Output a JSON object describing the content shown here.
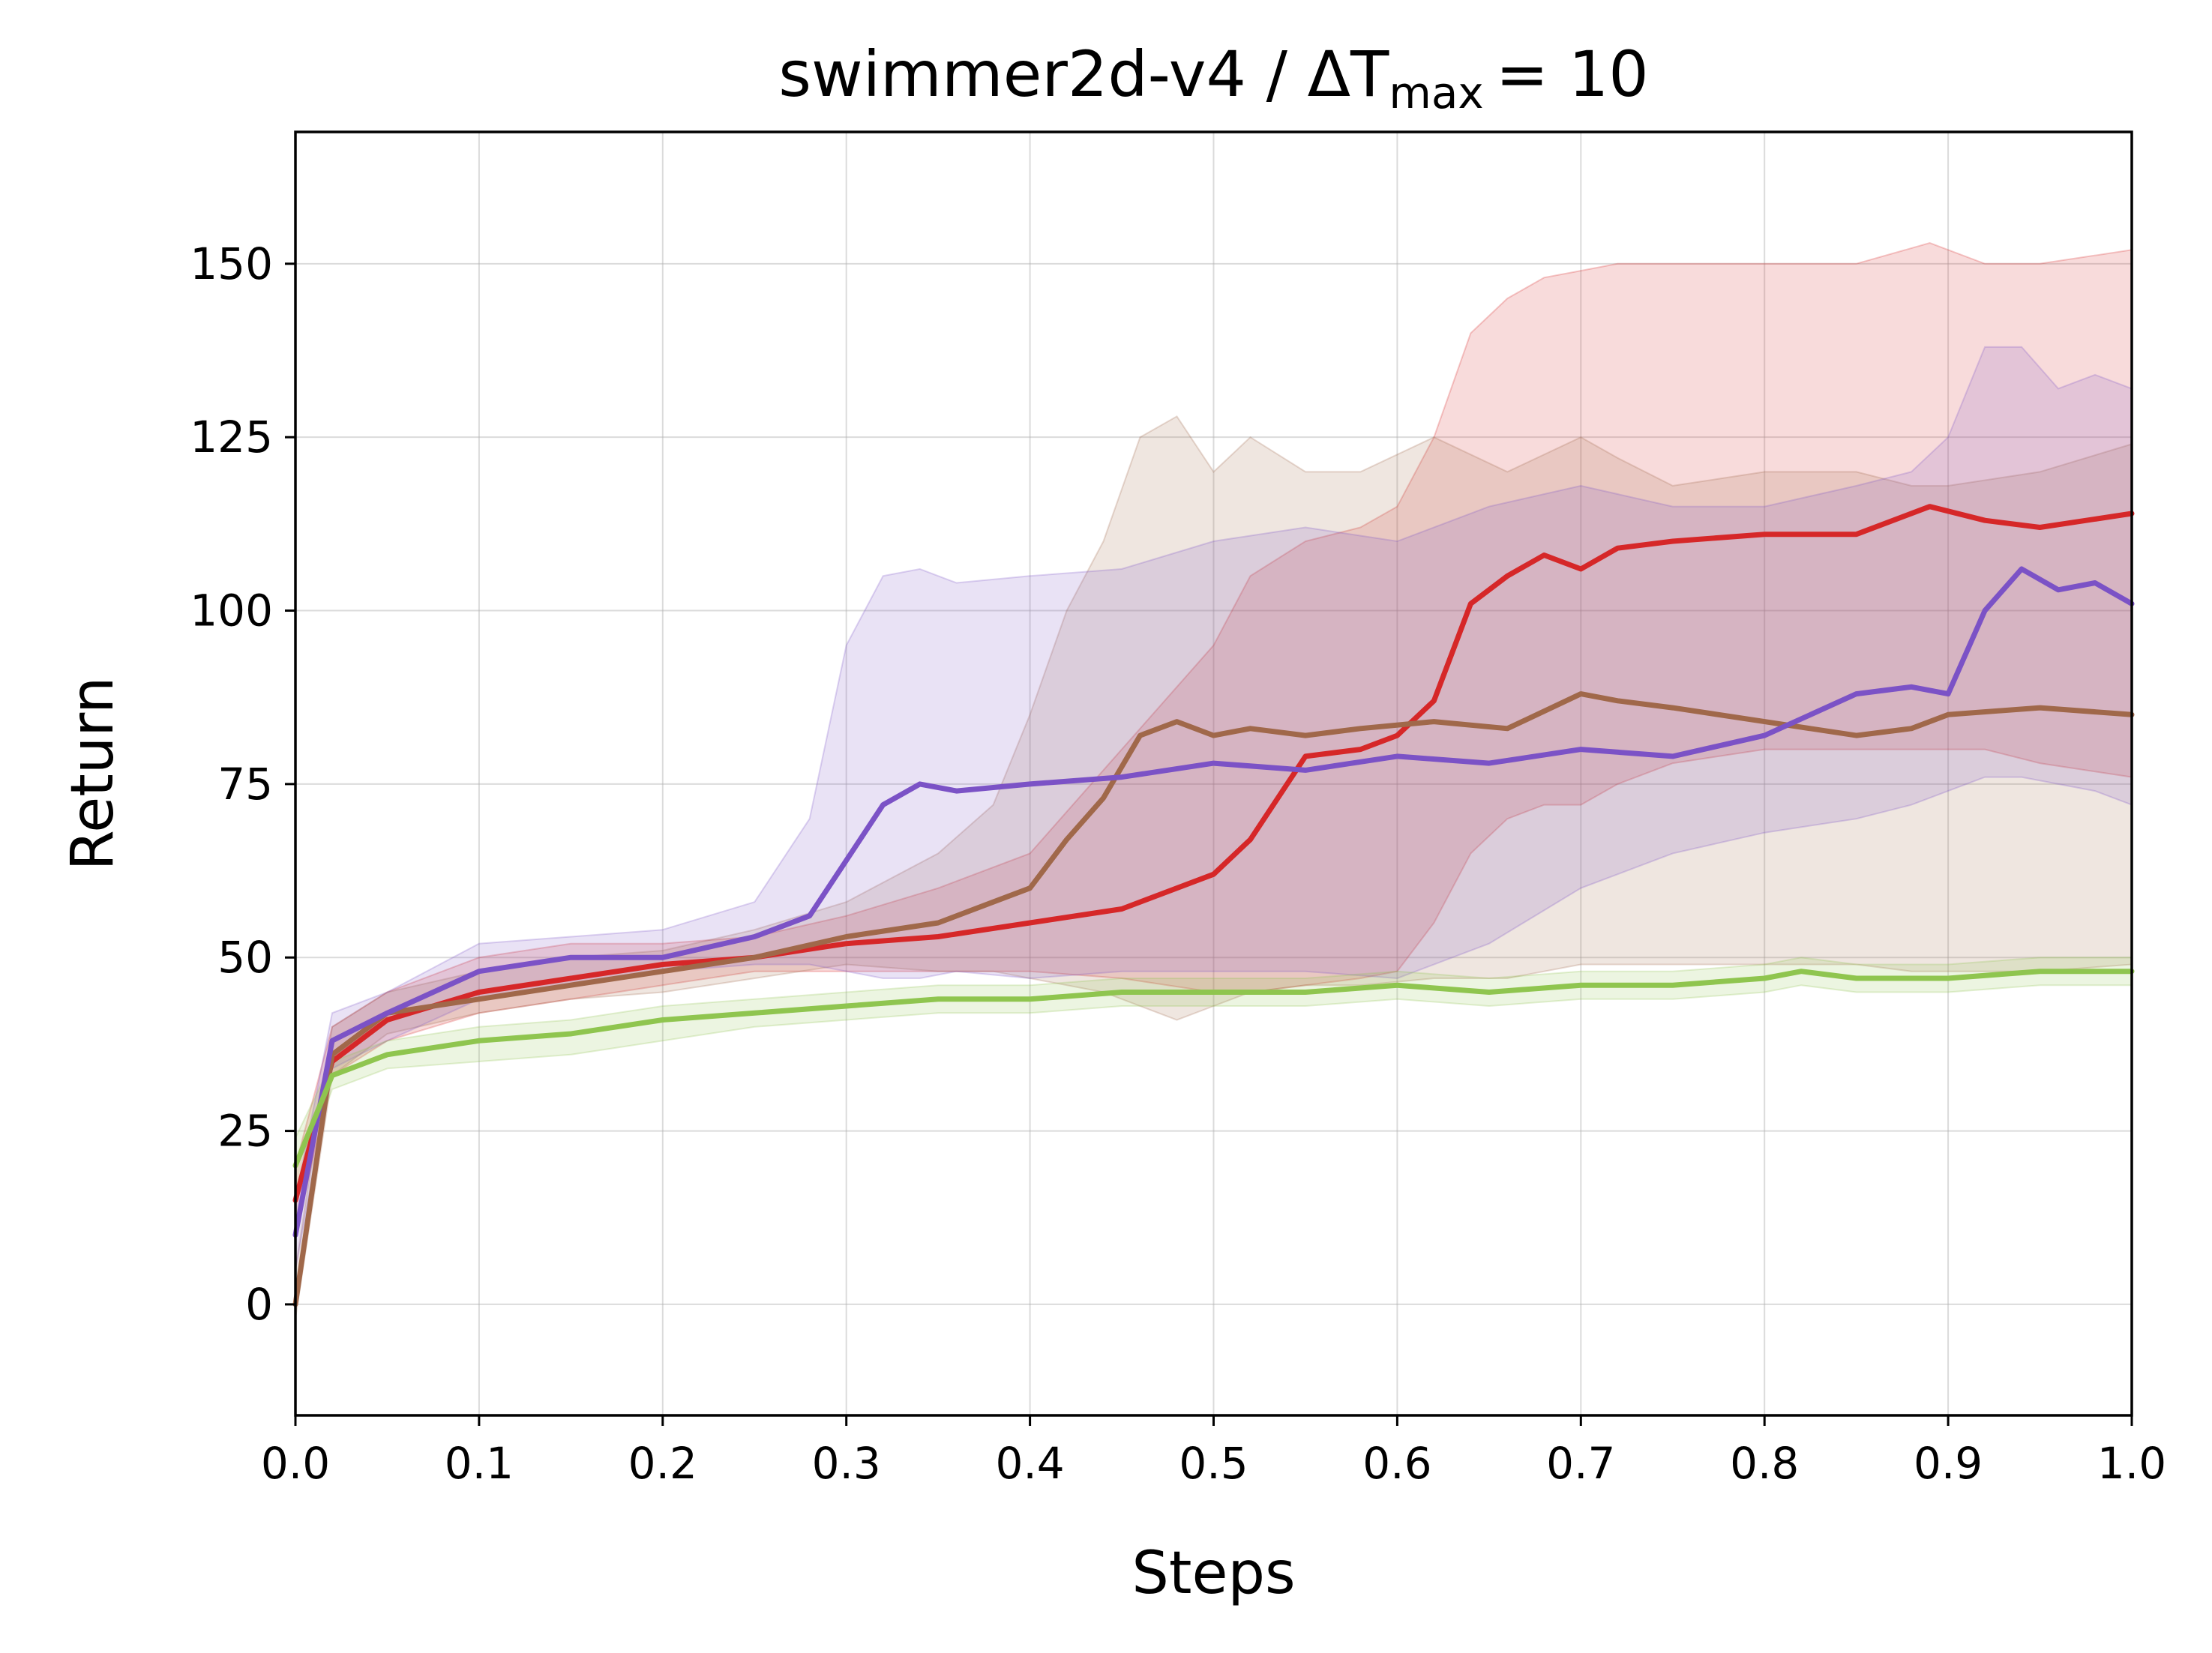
{
  "chart_data": {
    "type": "line",
    "title": {
      "main": "swimmer2d-v4 / ΔT",
      "subscript": "max",
      "suffix": "= 10"
    },
    "xlabel": "Steps",
    "ylabel": "Return",
    "xlim": [
      0.0,
      1.0
    ],
    "ylim": [
      -16,
      169
    ],
    "xticks": [
      0.0,
      0.1,
      0.2,
      0.3,
      0.4,
      0.5,
      0.6,
      0.7,
      0.8,
      0.9,
      1.0
    ],
    "xtick_labels": [
      "0.0",
      "0.1",
      "0.2",
      "0.3",
      "0.4",
      "0.5",
      "0.6",
      "0.7",
      "0.8",
      "0.9",
      "1.0"
    ],
    "yticks": [
      0,
      25,
      50,
      75,
      100,
      125,
      150
    ],
    "ytick_labels": [
      "0",
      "25",
      "50",
      "75",
      "100",
      "125",
      "150"
    ],
    "grid": true,
    "legend": "none",
    "series": [
      {
        "color": "#d62728",
        "x": [
          0.0,
          0.02,
          0.05,
          0.1,
          0.15,
          0.2,
          0.25,
          0.3,
          0.35,
          0.4,
          0.45,
          0.5,
          0.52,
          0.55,
          0.58,
          0.6,
          0.62,
          0.64,
          0.66,
          0.68,
          0.7,
          0.72,
          0.75,
          0.8,
          0.85,
          0.89,
          0.92,
          0.95,
          1.0
        ],
        "y": [
          15,
          35,
          41,
          45,
          47,
          49,
          50,
          52,
          53,
          55,
          57,
          62,
          67,
          79,
          80,
          82,
          87,
          101,
          105,
          108,
          106,
          109,
          110,
          111,
          111,
          115,
          113,
          112,
          114
        ],
        "upper": [
          20,
          40,
          45,
          50,
          52,
          52,
          53,
          56,
          60,
          65,
          80,
          95,
          105,
          110,
          112,
          115,
          125,
          140,
          145,
          148,
          149,
          150,
          150,
          150,
          150,
          153,
          150,
          150,
          152
        ],
        "lower": [
          10,
          33,
          38,
          42,
          44,
          46,
          48,
          48,
          48,
          48,
          47,
          45,
          45,
          46,
          47,
          48,
          55,
          65,
          70,
          72,
          72,
          75,
          78,
          80,
          80,
          80,
          80,
          78,
          76
        ]
      },
      {
        "color": "#a0684a",
        "x": [
          0.0,
          0.02,
          0.05,
          0.1,
          0.15,
          0.2,
          0.25,
          0.3,
          0.35,
          0.38,
          0.4,
          0.42,
          0.44,
          0.46,
          0.48,
          0.5,
          0.52,
          0.55,
          0.58,
          0.62,
          0.66,
          0.7,
          0.72,
          0.75,
          0.8,
          0.85,
          0.88,
          0.9,
          0.95,
          1.0
        ],
        "y": [
          0,
          36,
          42,
          44,
          46,
          48,
          50,
          53,
          55,
          58,
          60,
          67,
          73,
          82,
          84,
          82,
          83,
          82,
          83,
          84,
          83,
          88,
          87,
          86,
          84,
          82,
          83,
          85,
          86,
          85
        ],
        "upper": [
          5,
          40,
          45,
          48,
          50,
          51,
          54,
          58,
          65,
          72,
          85,
          100,
          110,
          125,
          128,
          120,
          125,
          120,
          120,
          125,
          120,
          125,
          122,
          118,
          120,
          120,
          118,
          118,
          120,
          124
        ],
        "lower": [
          -2,
          33,
          39,
          42,
          44,
          45,
          47,
          49,
          48,
          48,
          47,
          46,
          45,
          43,
          41,
          43,
          45,
          46,
          46,
          47,
          47,
          49,
          49,
          49,
          49,
          49,
          48,
          48,
          48,
          49
        ]
      },
      {
        "color": "#7b52c6",
        "x": [
          0.0,
          0.02,
          0.05,
          0.1,
          0.15,
          0.2,
          0.25,
          0.28,
          0.3,
          0.32,
          0.34,
          0.36,
          0.4,
          0.45,
          0.5,
          0.55,
          0.6,
          0.65,
          0.7,
          0.75,
          0.8,
          0.85,
          0.88,
          0.9,
          0.92,
          0.94,
          0.96,
          0.98,
          1.0
        ],
        "y": [
          10,
          38,
          42,
          48,
          50,
          50,
          53,
          56,
          64,
          72,
          75,
          74,
          75,
          76,
          78,
          77,
          79,
          78,
          80,
          79,
          82,
          88,
          89,
          88,
          100,
          106,
          103,
          104,
          101
        ],
        "upper": [
          15,
          42,
          45,
          52,
          53,
          54,
          58,
          70,
          95,
          105,
          106,
          104,
          105,
          106,
          110,
          112,
          110,
          115,
          118,
          115,
          115,
          118,
          120,
          125,
          138,
          138,
          132,
          134,
          132
        ],
        "lower": [
          5,
          34,
          38,
          44,
          46,
          48,
          49,
          49,
          48,
          47,
          47,
          48,
          47,
          48,
          48,
          48,
          47,
          52,
          60,
          65,
          68,
          70,
          72,
          74,
          76,
          76,
          75,
          74,
          72
        ]
      },
      {
        "color": "#8fc54f",
        "x": [
          0.0,
          0.02,
          0.05,
          0.1,
          0.15,
          0.2,
          0.25,
          0.3,
          0.35,
          0.4,
          0.45,
          0.5,
          0.55,
          0.6,
          0.65,
          0.7,
          0.75,
          0.8,
          0.82,
          0.85,
          0.9,
          0.95,
          1.0
        ],
        "y": [
          20,
          33,
          36,
          38,
          39,
          41,
          42,
          43,
          44,
          44,
          45,
          45,
          45,
          46,
          45,
          46,
          46,
          47,
          48,
          47,
          47,
          48,
          48
        ],
        "upper": [
          24,
          35,
          38,
          40,
          41,
          43,
          44,
          45,
          46,
          46,
          47,
          47,
          47,
          48,
          47,
          48,
          48,
          49,
          50,
          49,
          49,
          50,
          50
        ],
        "lower": [
          16,
          31,
          34,
          35,
          36,
          38,
          40,
          41,
          42,
          42,
          43,
          43,
          43,
          44,
          43,
          44,
          44,
          45,
          46,
          45,
          45,
          46,
          46
        ]
      }
    ]
  }
}
